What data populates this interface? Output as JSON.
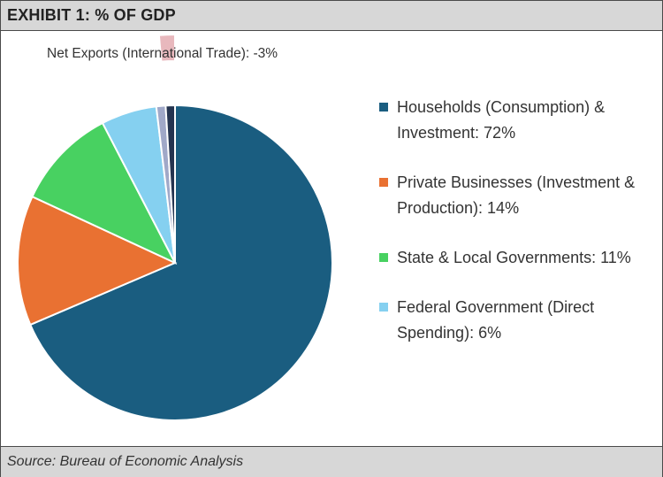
{
  "header": {
    "title": "EXHIBIT 1: % OF GDP"
  },
  "footer": {
    "source": "Source: Bureau of Economic Analysis"
  },
  "chart_data": {
    "type": "pie",
    "title": "EXHIBIT 1: % OF GDP",
    "unit": "%",
    "slices": [
      {
        "label": "Households (Consumption) & Investment: 72%",
        "value": 72,
        "color": "#1a5d80",
        "in_legend": true
      },
      {
        "label": "Private Businesses (Investment & Production): 14%",
        "value": 14,
        "color": "#e97132",
        "in_legend": true
      },
      {
        "label": "State & Local Governments: 11%",
        "value": 11,
        "color": "#48d161",
        "in_legend": true
      },
      {
        "label": "Federal Government (Direct Spending): 6%",
        "value": 6,
        "color": "#85d0f0",
        "in_legend": true
      },
      {
        "label": "",
        "value": 1,
        "color": "#a0a8c8",
        "in_legend": false
      },
      {
        "label": "",
        "value": 1,
        "color": "#253450",
        "in_legend": false
      },
      {
        "label": "Net Exports (International Trade): -3%",
        "value": -3,
        "color": "#e8b8bd",
        "in_legend": false,
        "exploded": true
      }
    ],
    "annotation": "Net Exports (International Trade): -3%",
    "legend_position": "right"
  }
}
